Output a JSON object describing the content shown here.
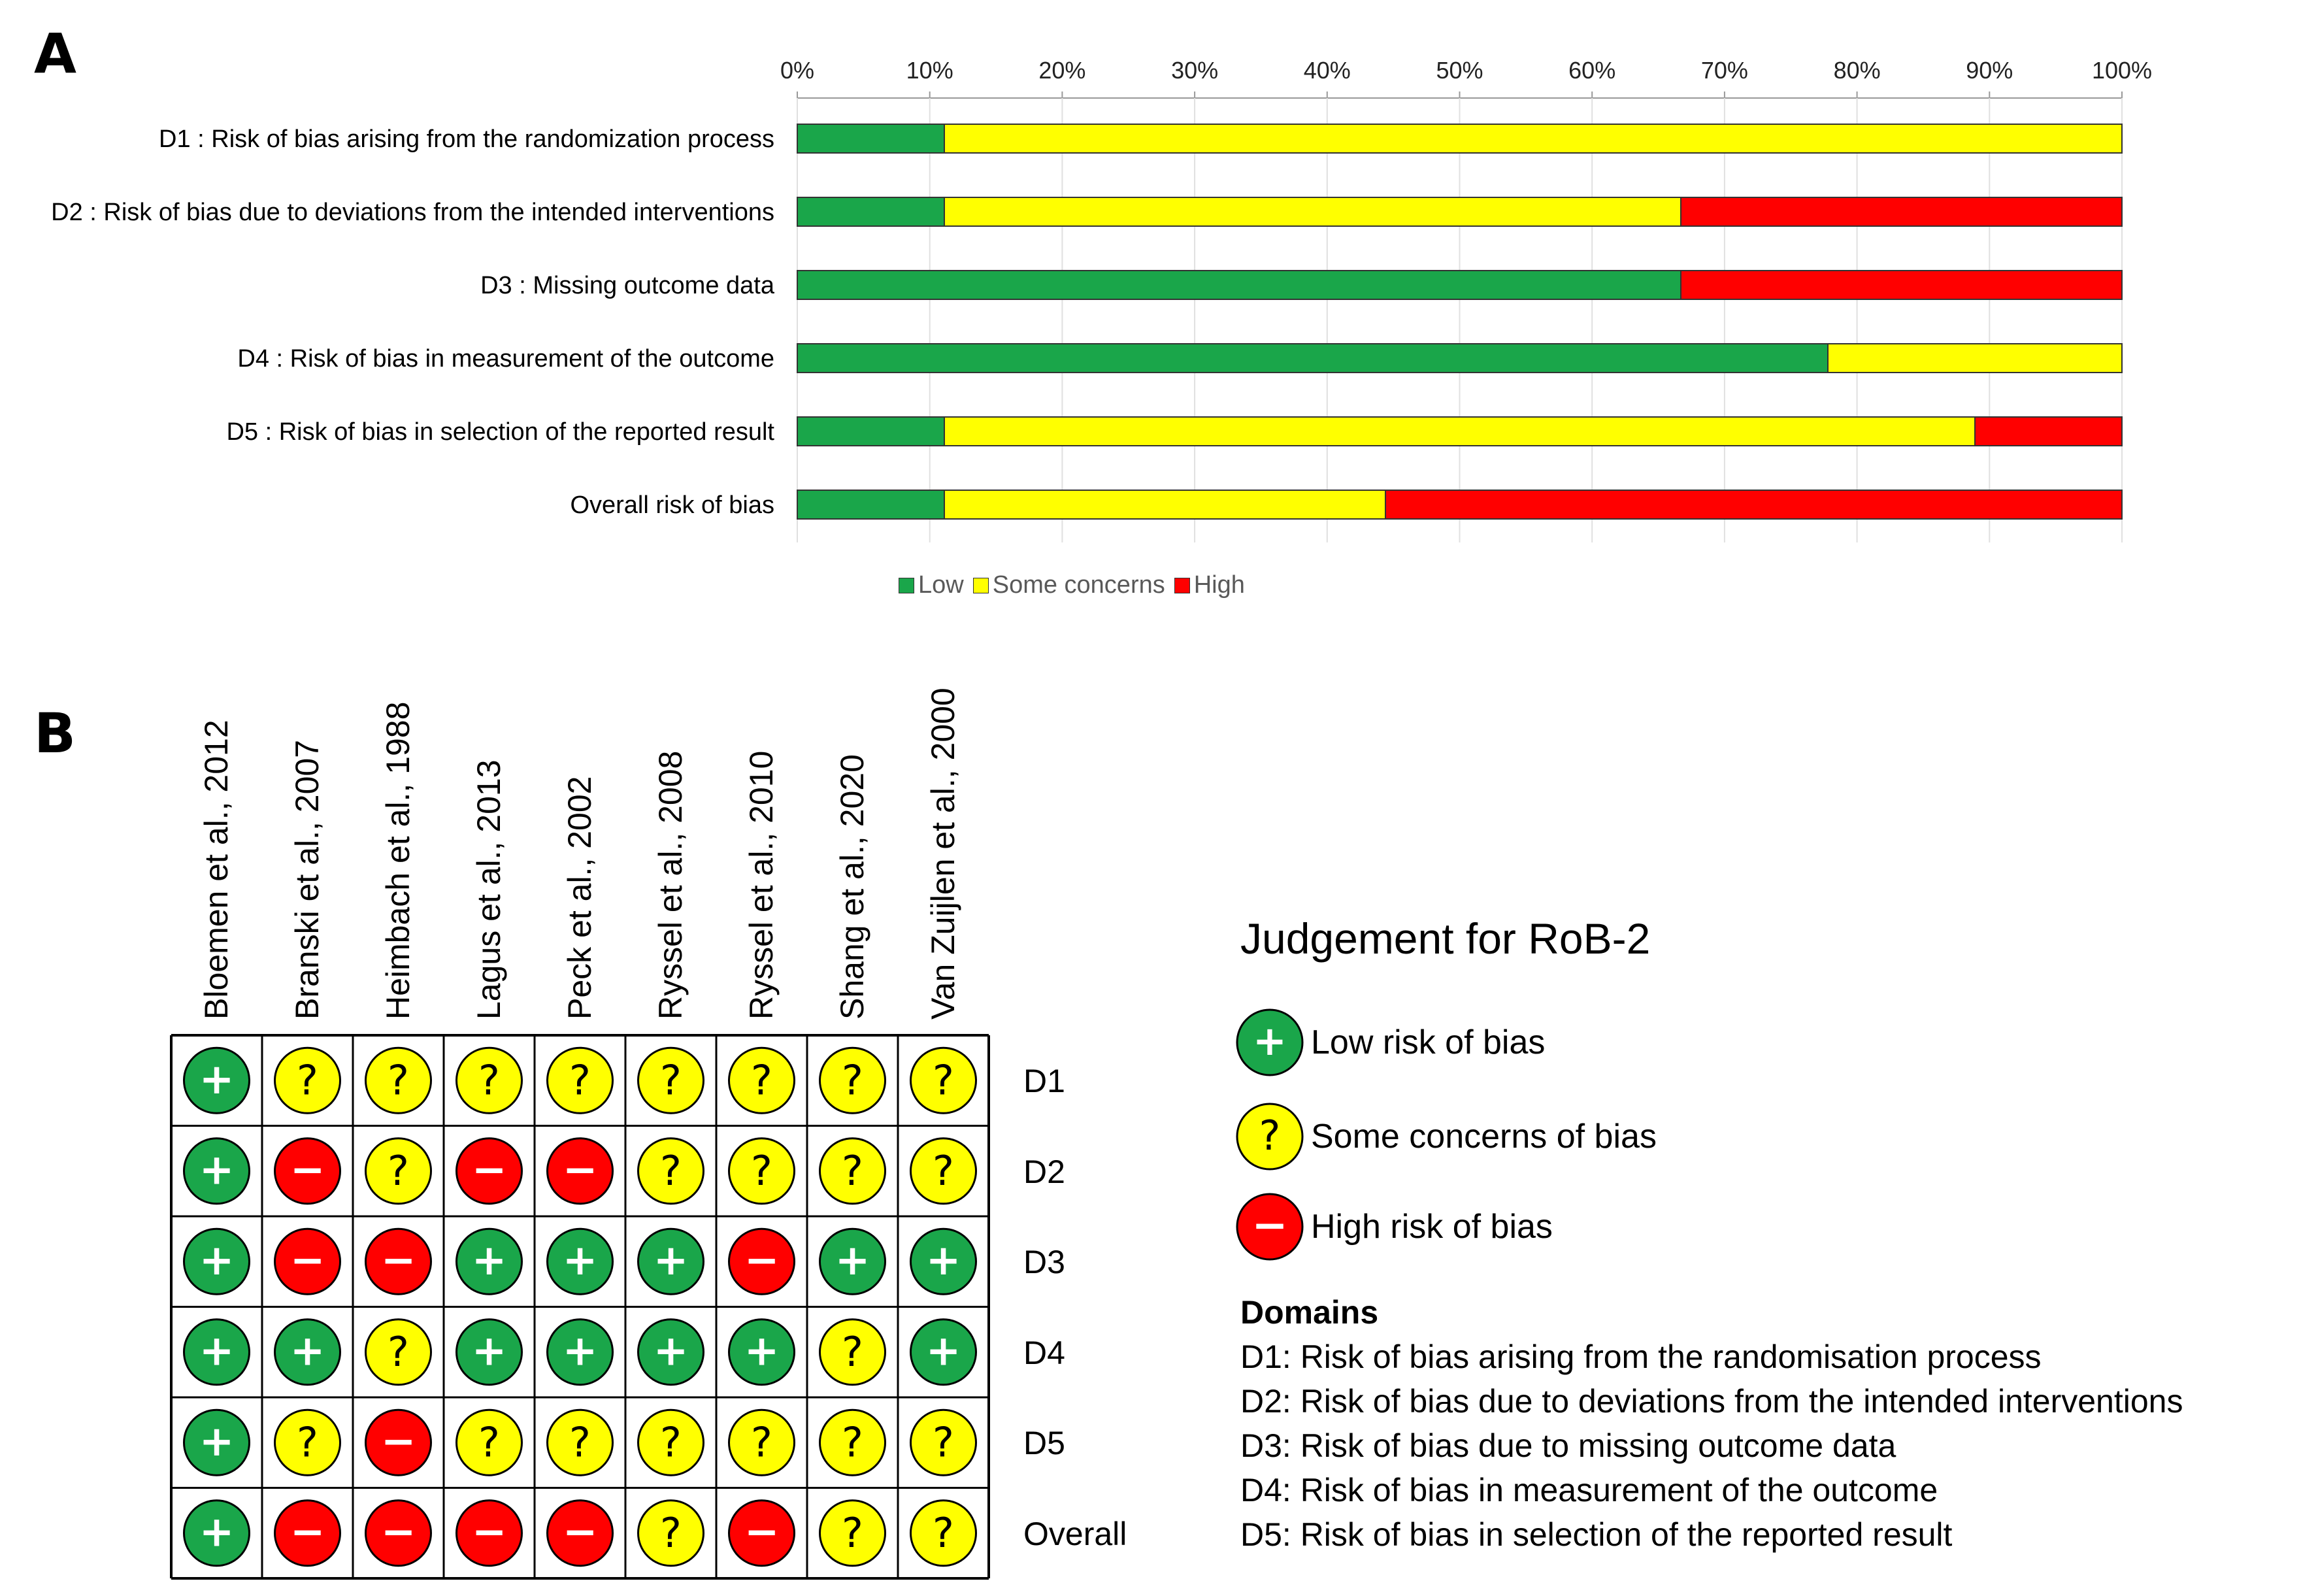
{
  "panels": {
    "a": "A",
    "b": "B"
  },
  "chart_data": [
    {
      "type": "bar",
      "stacked": true,
      "orientation": "horizontal",
      "title": "",
      "xlim": [
        0,
        100
      ],
      "xticks": [
        "0%",
        "10%",
        "20%",
        "30%",
        "40%",
        "50%",
        "60%",
        "70%",
        "80%",
        "90%",
        "100%"
      ],
      "categories": [
        "D1 : Risk of bias arising from the randomization process",
        "D2 : Risk of bias due to deviations from the intended interventions",
        "D3 : Missing outcome data",
        "D4 : Risk of bias in measurement of the outcome",
        "D5 : Risk of bias in selection of the reported result",
        "Overall risk of bias"
      ],
      "series": [
        {
          "name": "Low",
          "color": "#1aa64a",
          "values": [
            11.1,
            11.1,
            66.7,
            77.8,
            11.1,
            11.1
          ]
        },
        {
          "name": "Some concerns",
          "color": "#ffff00",
          "values": [
            88.9,
            55.6,
            0,
            22.2,
            77.8,
            33.3
          ]
        },
        {
          "name": "High",
          "color": "#ff0000",
          "values": [
            0,
            33.3,
            33.3,
            0,
            11.1,
            55.6
          ]
        }
      ]
    },
    {
      "type": "table",
      "title": "Judgement for RoB-2",
      "studies": [
        "Bloemen et al., 2012",
        "Branski et al., 2007",
        "Heimbach et al., 1988",
        "Lagus et al., 2013",
        "Peck et al., 2002",
        "Ryssel et al., 2008",
        "Ryssel et al., 2010",
        "Shang et al., 2020",
        "Van Zuijlen et al., 2000"
      ],
      "rows": [
        "D1",
        "D2",
        "D3",
        "D4",
        "D5",
        "Overall"
      ],
      "judgements": [
        [
          "low",
          "some",
          "some",
          "some",
          "some",
          "some",
          "some",
          "some",
          "some"
        ],
        [
          "low",
          "high",
          "some",
          "high",
          "high",
          "some",
          "some",
          "some",
          "some"
        ],
        [
          "low",
          "high",
          "high",
          "low",
          "low",
          "low",
          "high",
          "low",
          "low"
        ],
        [
          "low",
          "low",
          "some",
          "low",
          "low",
          "low",
          "low",
          "some",
          "low"
        ],
        [
          "low",
          "some",
          "high",
          "some",
          "some",
          "some",
          "some",
          "some",
          "some"
        ],
        [
          "low",
          "high",
          "high",
          "high",
          "high",
          "some",
          "high",
          "some",
          "some"
        ]
      ]
    }
  ],
  "judgement_legend": [
    {
      "key": "low",
      "label": "Low risk of bias",
      "symbol": "+",
      "color": "#1aa64a"
    },
    {
      "key": "some",
      "label": "Some concerns of bias",
      "symbol": "?",
      "color": "#ffff00"
    },
    {
      "key": "high",
      "label": "High risk of bias",
      "symbol": "−",
      "color": "#ff0000"
    }
  ],
  "domains": {
    "heading": "Domains",
    "items": [
      "D1: Risk of bias arising from the randomisation process",
      "D2: Risk of bias due to deviations from the intended interventions",
      "D3: Risk of bias due to missing outcome data",
      "D4: Risk of bias in measurement of the outcome",
      "D5: Risk of bias in selection of the reported result"
    ]
  }
}
